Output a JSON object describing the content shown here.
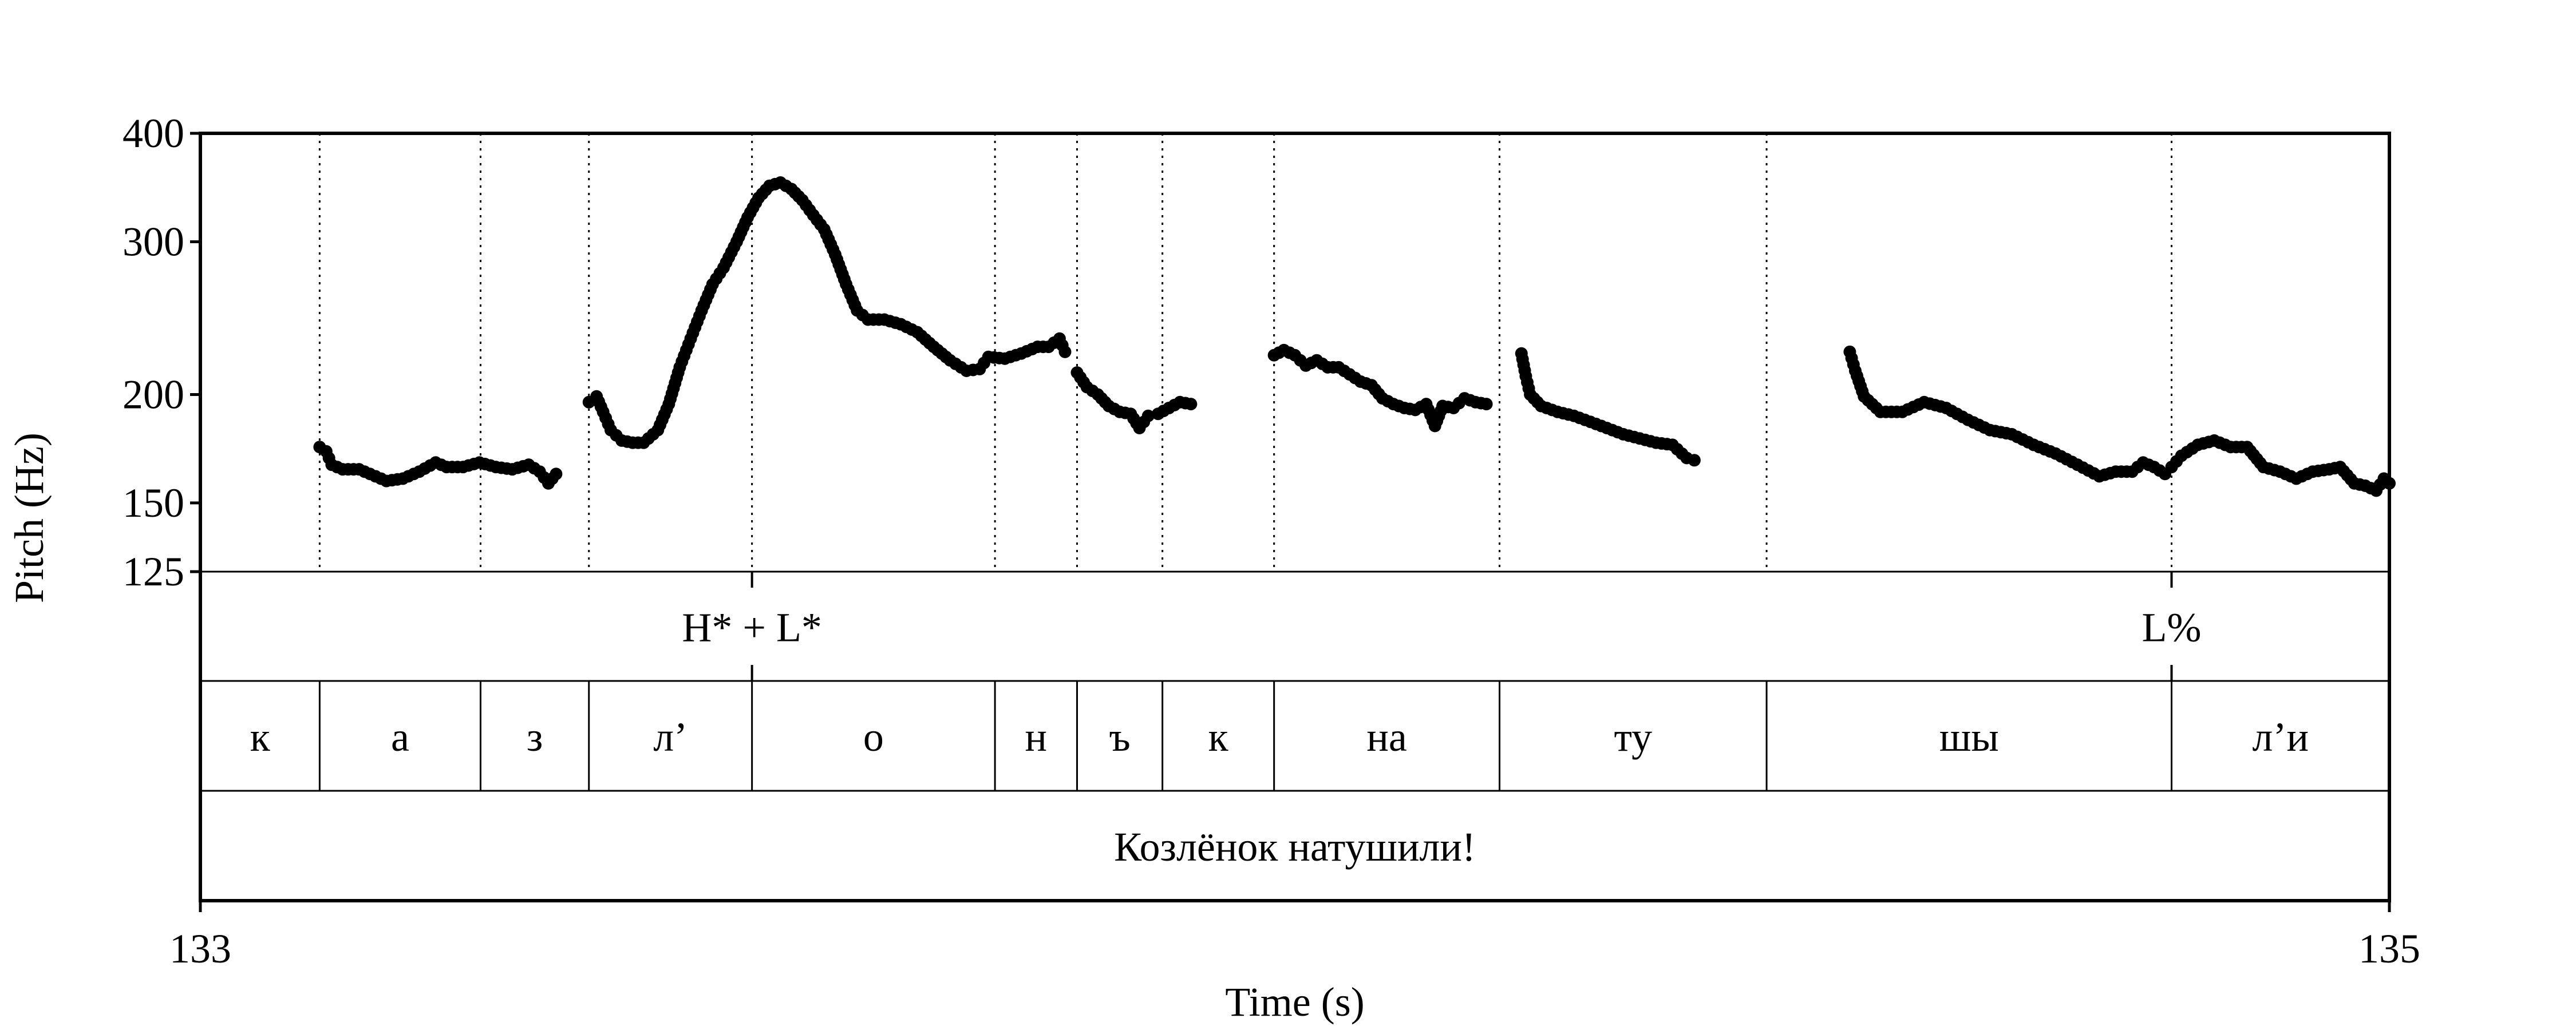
{
  "chart_data": {
    "type": "scatter",
    "title": "",
    "xlabel": "Time (s)",
    "ylabel": "Pitch (Hz)",
    "xlim": [
      133,
      135
    ],
    "ylim": [
      125,
      400
    ],
    "y_scale": "log",
    "x_ticks": [
      "133",
      "135"
    ],
    "y_ticks": [
      {
        "value": 400,
        "label": "400"
      },
      {
        "value": 300,
        "label": "300"
      },
      {
        "value": 200,
        "label": "200"
      },
      {
        "value": 150,
        "label": "150"
      },
      {
        "value": 125,
        "label": "125"
      }
    ],
    "boundaries": [
      133.109,
      133.256,
      133.355,
      133.504,
      133.726,
      133.801,
      133.879,
      133.981,
      134.187,
      134.431,
      134.801
    ],
    "tiers": [
      {
        "name": "tones",
        "points": [
          {
            "time": 133.504,
            "label": "H* + L*"
          },
          {
            "time": 134.801,
            "label": "L%"
          }
        ]
      },
      {
        "name": "syllables",
        "intervals": [
          {
            "start": 133.0,
            "end": 133.109,
            "label": "к"
          },
          {
            "start": 133.109,
            "end": 133.256,
            "label": "а"
          },
          {
            "start": 133.256,
            "end": 133.355,
            "label": "з"
          },
          {
            "start": 133.355,
            "end": 133.504,
            "label": "л’"
          },
          {
            "start": 133.504,
            "end": 133.726,
            "label": "о"
          },
          {
            "start": 133.726,
            "end": 133.801,
            "label": "н"
          },
          {
            "start": 133.801,
            "end": 133.879,
            "label": "ъ"
          },
          {
            "start": 133.879,
            "end": 133.981,
            "label": "к"
          },
          {
            "start": 133.981,
            "end": 134.187,
            "label": "на"
          },
          {
            "start": 134.187,
            "end": 134.431,
            "label": "ту"
          },
          {
            "start": 134.431,
            "end": 134.801,
            "label": "шы"
          },
          {
            "start": 134.801,
            "end": 135.0,
            "label": "л’и"
          }
        ]
      },
      {
        "name": "utterance",
        "intervals": [
          {
            "start": 133.0,
            "end": 135.0,
            "label": "Козлёнок натушили!"
          }
        ]
      }
    ],
    "pitch_segments": [
      [
        [
          133.109,
          174
        ],
        [
          133.115,
          172
        ],
        [
          133.12,
          166
        ],
        [
          133.13,
          164
        ],
        [
          133.145,
          164
        ],
        [
          133.16,
          161
        ],
        [
          133.17,
          159
        ],
        [
          133.185,
          160
        ],
        [
          133.2,
          163
        ],
        [
          133.215,
          167
        ],
        [
          133.225,
          165
        ],
        [
          133.24,
          165
        ],
        [
          133.255,
          167
        ],
        [
          133.27,
          165
        ],
        [
          133.285,
          164
        ],
        [
          133.3,
          166
        ],
        [
          133.31,
          163
        ],
        [
          133.318,
          158
        ],
        [
          133.325,
          162
        ]
      ],
      [
        [
          133.355,
          196
        ],
        [
          133.362,
          199
        ],
        [
          133.368,
          191
        ],
        [
          133.375,
          182
        ],
        [
          133.385,
          177
        ],
        [
          133.395,
          176
        ],
        [
          133.405,
          176
        ],
        [
          133.418,
          182
        ],
        [
          133.428,
          195
        ],
        [
          133.438,
          215
        ],
        [
          133.448,
          232
        ],
        [
          133.458,
          250
        ],
        [
          133.468,
          268
        ],
        [
          133.478,
          280
        ],
        [
          133.49,
          300
        ],
        [
          133.5,
          320
        ],
        [
          133.51,
          337
        ],
        [
          133.52,
          348
        ],
        [
          133.53,
          351
        ],
        [
          133.54,
          345
        ],
        [
          133.55,
          335
        ],
        [
          133.56,
          322
        ],
        [
          133.57,
          310
        ],
        [
          133.58,
          290
        ],
        [
          133.59,
          268
        ],
        [
          133.6,
          250
        ],
        [
          133.61,
          244
        ],
        [
          133.625,
          244
        ],
        [
          133.64,
          241
        ],
        [
          133.655,
          236
        ],
        [
          133.67,
          227
        ],
        [
          133.685,
          219
        ],
        [
          133.7,
          213
        ],
        [
          133.712,
          214
        ],
        [
          133.72,
          221
        ],
        [
          133.735,
          220
        ],
        [
          133.75,
          223
        ],
        [
          133.765,
          227
        ],
        [
          133.775,
          227
        ],
        [
          133.785,
          232
        ],
        [
          133.79,
          224
        ]
      ],
      [
        [
          133.801,
          212
        ],
        [
          133.81,
          204
        ],
        [
          133.82,
          200
        ],
        [
          133.83,
          194
        ],
        [
          133.84,
          191
        ],
        [
          133.85,
          190
        ],
        [
          133.858,
          183
        ],
        [
          133.866,
          189
        ],
        [
          133.875,
          190
        ],
        [
          133.885,
          193
        ],
        [
          133.895,
          196
        ],
        [
          133.905,
          195
        ]
      ],
      [
        [
          133.981,
          222
        ],
        [
          133.99,
          225
        ],
        [
          134.0,
          222
        ],
        [
          134.01,
          216
        ],
        [
          134.02,
          219
        ],
        [
          134.03,
          215
        ],
        [
          134.04,
          215
        ],
        [
          134.05,
          211
        ],
        [
          134.06,
          207
        ],
        [
          134.07,
          205
        ],
        [
          134.08,
          198
        ],
        [
          134.09,
          195
        ],
        [
          134.1,
          193
        ],
        [
          134.11,
          192
        ],
        [
          134.12,
          195
        ],
        [
          134.128,
          184
        ],
        [
          134.135,
          194
        ],
        [
          134.145,
          193
        ],
        [
          134.155,
          198
        ],
        [
          134.165,
          196
        ],
        [
          134.175,
          195
        ]
      ],
      [
        [
          134.207,
          223
        ],
        [
          134.211,
          210
        ],
        [
          134.215,
          200
        ],
        [
          134.225,
          194
        ],
        [
          134.24,
          191
        ],
        [
          134.255,
          189
        ],
        [
          134.27,
          186
        ],
        [
          134.285,
          183
        ],
        [
          134.3,
          180
        ],
        [
          134.315,
          178
        ],
        [
          134.33,
          176
        ],
        [
          134.345,
          175
        ],
        [
          134.358,
          169
        ],
        [
          134.365,
          168
        ]
      ],
      [
        [
          134.507,
          224
        ],
        [
          134.512,
          213
        ],
        [
          134.52,
          199
        ],
        [
          134.535,
          191
        ],
        [
          134.555,
          191
        ],
        [
          134.575,
          196
        ],
        [
          134.595,
          193
        ],
        [
          134.615,
          187
        ],
        [
          134.635,
          182
        ],
        [
          134.655,
          180
        ],
        [
          134.675,
          175
        ],
        [
          134.695,
          171
        ],
        [
          134.715,
          166
        ],
        [
          134.735,
          161
        ],
        [
          134.75,
          163
        ],
        [
          134.765,
          163
        ],
        [
          134.775,
          167
        ],
        [
          134.785,
          165
        ],
        [
          134.795,
          162
        ],
        [
          134.801,
          165
        ],
        [
          134.81,
          170
        ],
        [
          134.825,
          175
        ],
        [
          134.84,
          177
        ],
        [
          134.855,
          174
        ],
        [
          134.87,
          174
        ],
        [
          134.885,
          165
        ],
        [
          134.9,
          163
        ],
        [
          134.915,
          160
        ],
        [
          134.93,
          163
        ],
        [
          134.945,
          164
        ],
        [
          134.955,
          165
        ],
        [
          134.968,
          158
        ],
        [
          134.978,
          157
        ],
        [
          134.988,
          155
        ],
        [
          134.995,
          160
        ],
        [
          135.0,
          158
        ]
      ]
    ]
  }
}
